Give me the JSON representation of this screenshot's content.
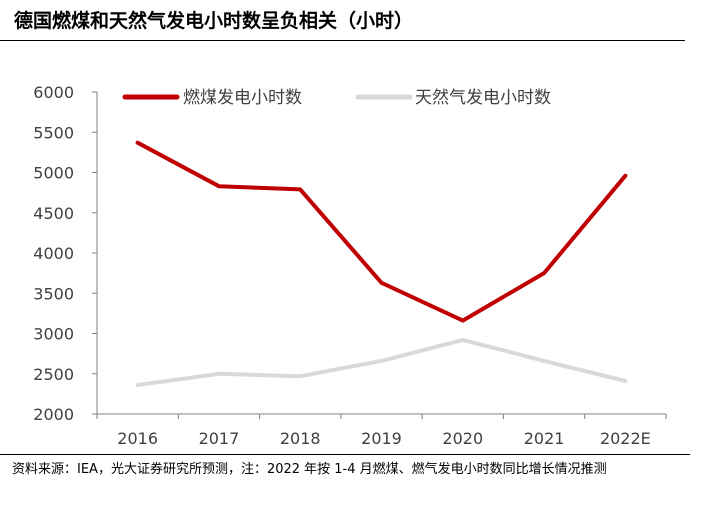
{
  "title": "德国燃煤和天然气发电小时数呈负相关（小时）",
  "source": "资料来源：IEA，光大证券研究所预测，注：2022 年按 1-4 月燃煤、燃气发电小时数同比增长情况推测",
  "colors": {
    "coal": "#c00000",
    "gas": "#d9d9d9",
    "axis": "#808080",
    "text": "#404040"
  },
  "chart_data": {
    "type": "line",
    "categories": [
      "2016",
      "2017",
      "2018",
      "2019",
      "2020",
      "2021",
      "2022E"
    ],
    "series": [
      {
        "name": "燃煤发电小时数",
        "values": [
          5370,
          4830,
          4790,
          3630,
          3160,
          3750,
          4960
        ],
        "color": "#c00000"
      },
      {
        "name": "天然气发电小时数",
        "values": [
          2360,
          2500,
          2470,
          2660,
          2920,
          2660,
          2410
        ],
        "color": "#d9d9d9"
      }
    ],
    "y_ticks": [
      2000,
      2500,
      3000,
      3500,
      4000,
      4500,
      5000,
      5500,
      6000
    ],
    "ylim": [
      2000,
      6000
    ],
    "grid": false,
    "legend_position": "top"
  }
}
